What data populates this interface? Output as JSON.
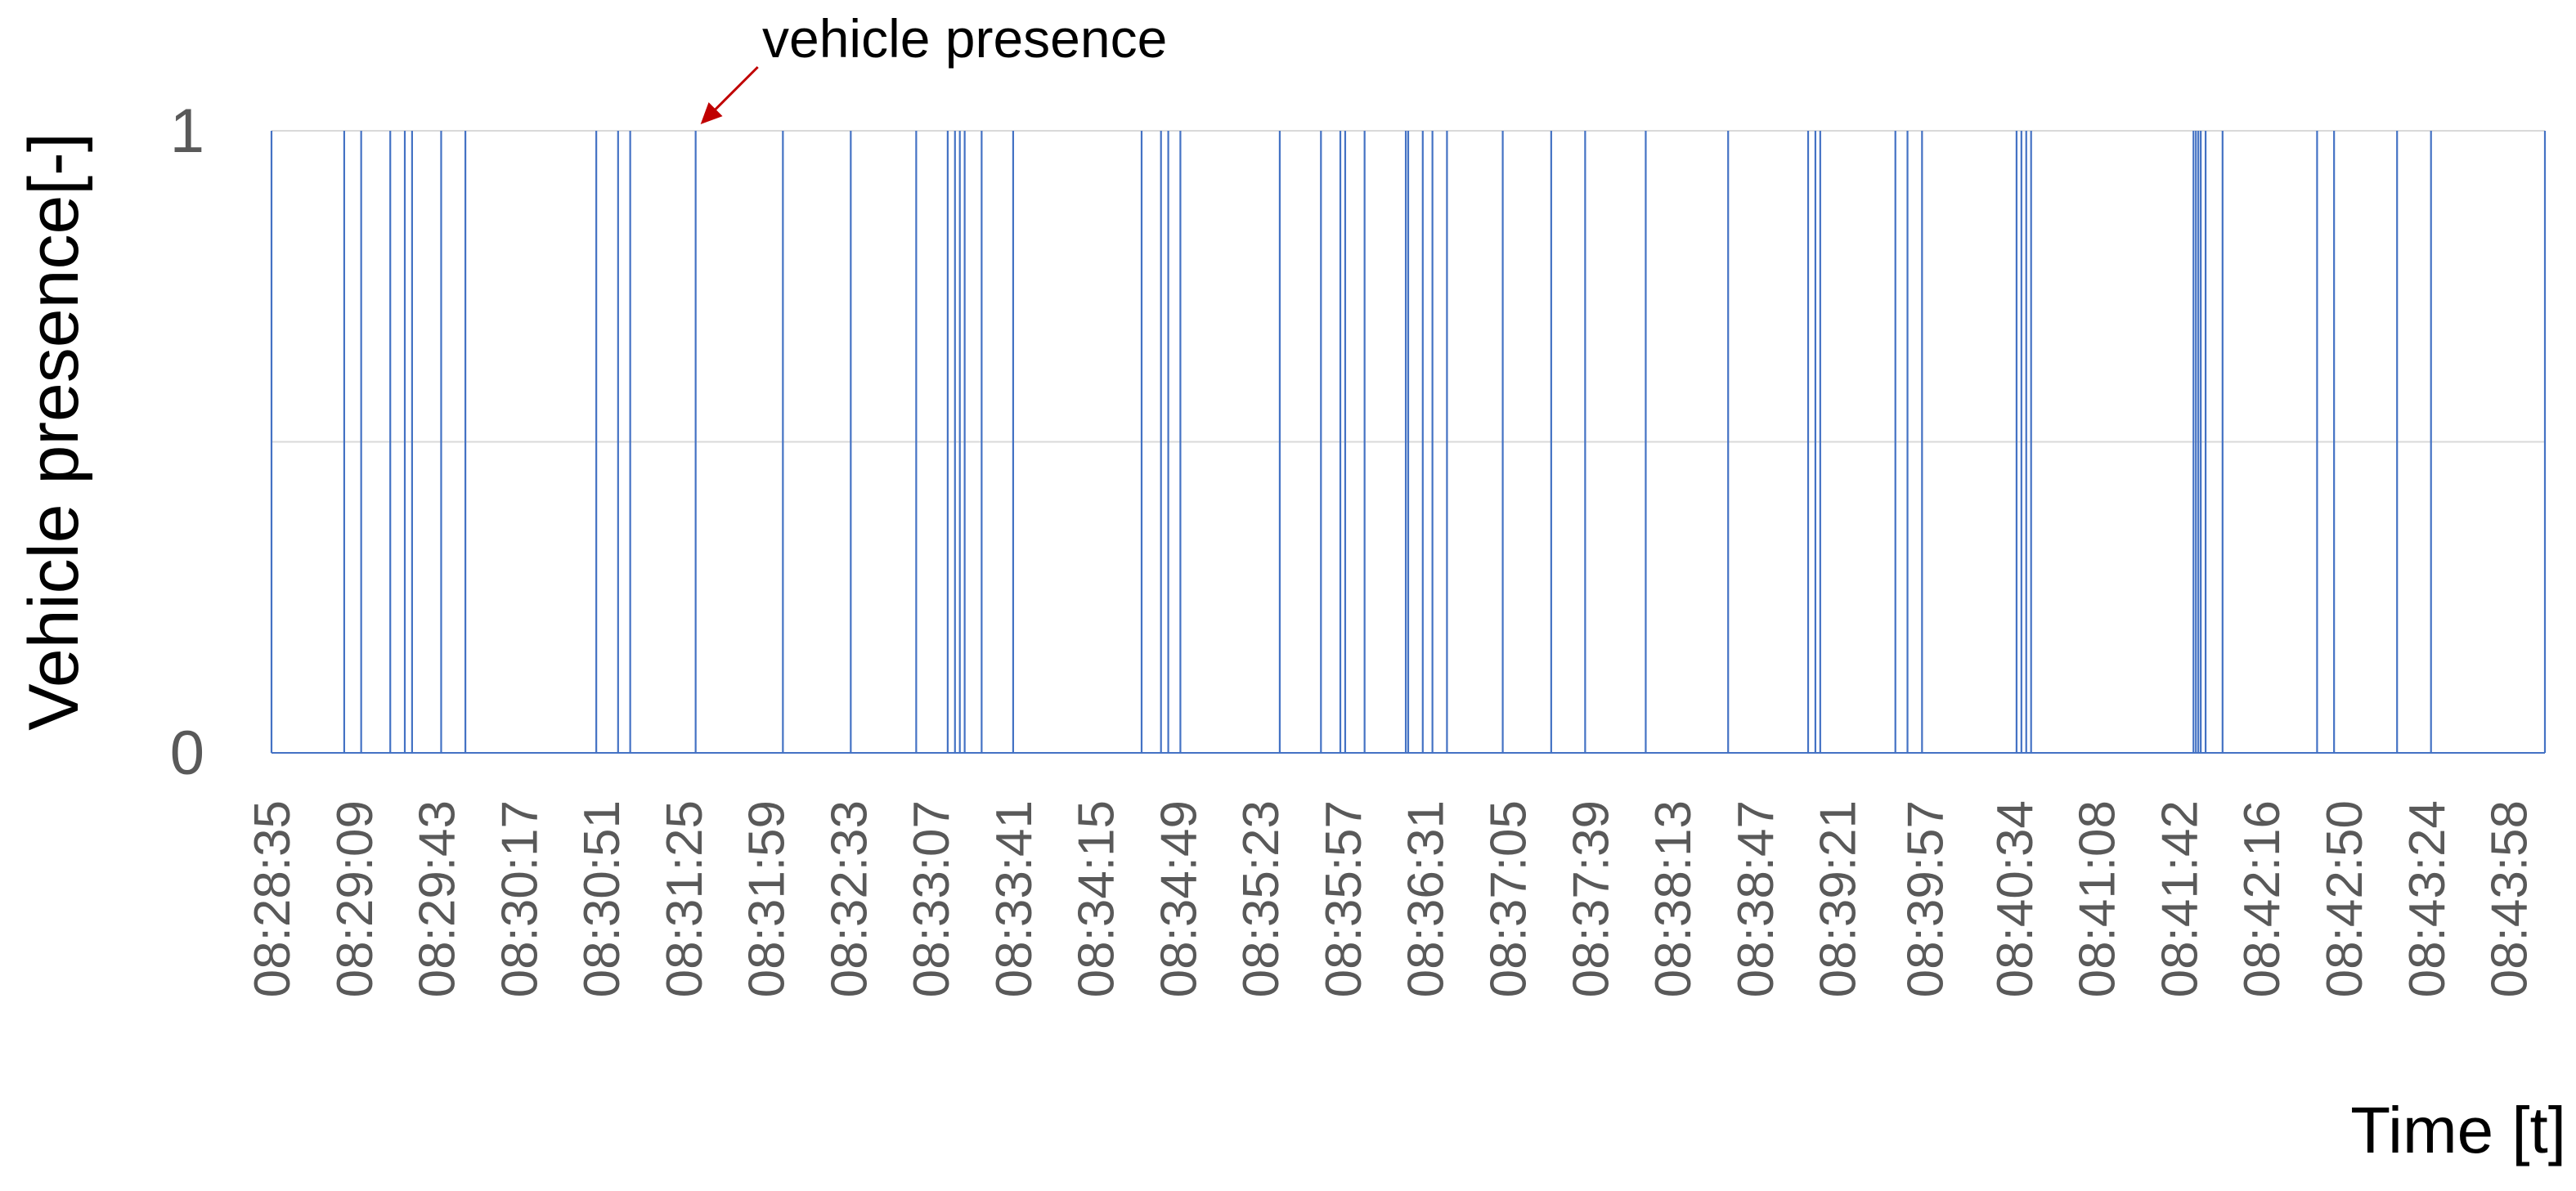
{
  "chart_data": {
    "type": "line",
    "xlabel": "Time [t]",
    "ylabel": "Vehicle presence[-]",
    "ylim": [
      0,
      1
    ],
    "yticks": [
      "0",
      "1"
    ],
    "xlim": [
      "08:28:35",
      "08:44:13"
    ],
    "x_tick_labels": [
      "08:28:35",
      "08:29:09",
      "08:29:43",
      "08:30:17",
      "08:30:51",
      "08:31:25",
      "08:31:59",
      "08:32:33",
      "08:33:07",
      "08:33:41",
      "08:34:15",
      "08:34:49",
      "08:35:23",
      "08:35:57",
      "08:36:31",
      "08:37:05",
      "08:37:39",
      "08:38:13",
      "08:38:47",
      "08:39:21",
      "08:39:57",
      "08:40:34",
      "08:41:08",
      "08:41:42",
      "08:42:16",
      "08:42:50",
      "08:43:24",
      "08:43:58"
    ],
    "grid": true,
    "series": [
      {
        "color": "#4472C4",
        "presence_events": [
          "08:28:35",
          "08:29:05",
          "08:29:12",
          "08:29:24",
          "08:29:30",
          "08:29:33",
          "08:29:45",
          "08:29:55",
          "08:30:49",
          "08:30:58",
          "08:31:03",
          "08:31:30",
          "08:32:06",
          "08:32:34",
          "08:33:01",
          "08:33:14",
          "08:33:17",
          "08:33:19",
          "08:33:21",
          "08:33:28",
          "08:33:41",
          "08:34:34",
          "08:34:42",
          "08:34:45",
          "08:34:50",
          "08:35:31",
          "08:35:48",
          "08:35:56",
          "08:35:58",
          "08:36:06",
          "08:36:23",
          "08:36:24",
          "08:36:30",
          "08:36:34",
          "08:36:40",
          "08:37:03",
          "08:37:23",
          "08:37:37",
          "08:38:02",
          "08:38:36",
          "08:39:09",
          "08:39:12",
          "08:39:14",
          "08:39:45",
          "08:39:50",
          "08:39:56",
          "08:40:35",
          "08:40:37",
          "08:40:39",
          "08:40:41",
          "08:41:48",
          "08:41:49",
          "08:41:50",
          "08:41:51",
          "08:41:53",
          "08:42:00",
          "08:42:39",
          "08:42:46",
          "08:43:12",
          "08:43:26",
          "08:44:13"
        ]
      }
    ],
    "annotation": {
      "text": "vehicle presence",
      "points_to": "08:31:30",
      "arrow_color": "#C00000"
    }
  }
}
